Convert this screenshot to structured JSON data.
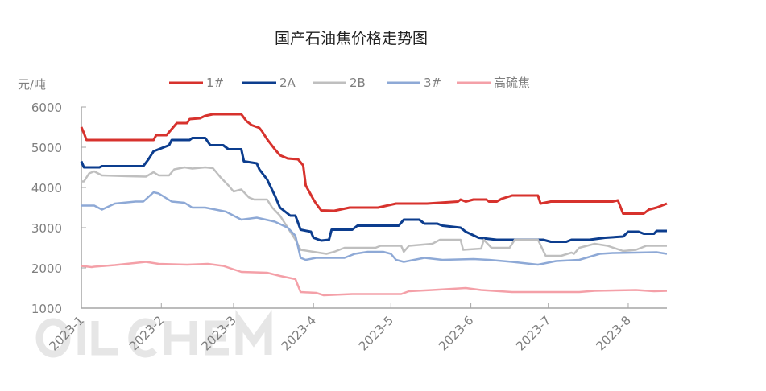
{
  "chart_data": {
    "type": "line",
    "title": "国产石油焦价格走势图",
    "ylabel": "元/吨",
    "xlabel": "",
    "ylim": [
      1000,
      6000
    ],
    "yticks": [
      "6000",
      "5000",
      "4000",
      "3000",
      "2000",
      "1000"
    ],
    "xlim": [
      "2023-01-01",
      "2023-08-16"
    ],
    "xticks": [
      {
        "label": "2023-1",
        "date": "2023-01-01"
      },
      {
        "label": "2023-2",
        "date": "2023-02-01"
      },
      {
        "label": "2023-3",
        "date": "2023-03-01"
      },
      {
        "label": "2023-4",
        "date": "2023-04-01"
      },
      {
        "label": "2023-5",
        "date": "2023-05-01"
      },
      {
        "label": "2023-6",
        "date": "2023-06-01"
      },
      {
        "label": "2023-7",
        "date": "2023-07-01"
      },
      {
        "label": "2023-8",
        "date": "2023-08-01"
      }
    ],
    "grid": false,
    "legend_position": "top",
    "watermark": "OILCHEM",
    "series": [
      {
        "name": "1#",
        "color": "#d7322d",
        "points": [
          [
            "2023-01-01",
            5500
          ],
          [
            "2023-01-02",
            5350
          ],
          [
            "2023-01-03",
            5180
          ],
          [
            "2023-01-29",
            5180
          ],
          [
            "2023-01-30",
            5300
          ],
          [
            "2023-02-03",
            5300
          ],
          [
            "2023-02-05",
            5450
          ],
          [
            "2023-02-07",
            5600
          ],
          [
            "2023-02-11",
            5600
          ],
          [
            "2023-02-12",
            5700
          ],
          [
            "2023-02-16",
            5720
          ],
          [
            "2023-02-18",
            5780
          ],
          [
            "2023-02-21",
            5820
          ],
          [
            "2023-03-04",
            5820
          ],
          [
            "2023-03-06",
            5650
          ],
          [
            "2023-03-08",
            5550
          ],
          [
            "2023-03-11",
            5480
          ],
          [
            "2023-03-12",
            5400
          ],
          [
            "2023-03-14",
            5200
          ],
          [
            "2023-03-17",
            4950
          ],
          [
            "2023-03-19",
            4800
          ],
          [
            "2023-03-22",
            4720
          ],
          [
            "2023-03-26",
            4700
          ],
          [
            "2023-03-28",
            4550
          ],
          [
            "2023-03-29",
            4050
          ],
          [
            "2023-04-01",
            3700
          ],
          [
            "2023-04-02",
            3600
          ],
          [
            "2023-04-04",
            3430
          ],
          [
            "2023-04-09",
            3420
          ],
          [
            "2023-04-15",
            3500
          ],
          [
            "2023-04-26",
            3500
          ],
          [
            "2023-05-03",
            3600
          ],
          [
            "2023-05-15",
            3600
          ],
          [
            "2023-05-27",
            3650
          ],
          [
            "2023-05-28",
            3700
          ],
          [
            "2023-05-30",
            3650
          ],
          [
            "2023-06-02",
            3700
          ],
          [
            "2023-06-07",
            3700
          ],
          [
            "2023-06-08",
            3650
          ],
          [
            "2023-06-11",
            3650
          ],
          [
            "2023-06-13",
            3720
          ],
          [
            "2023-06-17",
            3800
          ],
          [
            "2023-06-27",
            3800
          ],
          [
            "2023-06-28",
            3600
          ],
          [
            "2023-07-02",
            3650
          ],
          [
            "2023-07-26",
            3650
          ],
          [
            "2023-07-28",
            3680
          ],
          [
            "2023-07-30",
            3350
          ],
          [
            "2023-08-07",
            3350
          ],
          [
            "2023-08-09",
            3450
          ],
          [
            "2023-08-12",
            3500
          ],
          [
            "2023-08-16",
            3600
          ]
        ]
      },
      {
        "name": "2A",
        "color": "#0c3d8e",
        "points": [
          [
            "2023-01-01",
            4650
          ],
          [
            "2023-01-02",
            4500
          ],
          [
            "2023-01-08",
            4500
          ],
          [
            "2023-01-09",
            4530
          ],
          [
            "2023-01-25",
            4530
          ],
          [
            "2023-01-27",
            4700
          ],
          [
            "2023-01-29",
            4900
          ],
          [
            "2023-01-31",
            4950
          ],
          [
            "2023-02-04",
            5050
          ],
          [
            "2023-02-05",
            5180
          ],
          [
            "2023-02-12",
            5180
          ],
          [
            "2023-02-13",
            5230
          ],
          [
            "2023-02-18",
            5230
          ],
          [
            "2023-02-20",
            5050
          ],
          [
            "2023-02-25",
            5050
          ],
          [
            "2023-02-27",
            4950
          ],
          [
            "2023-03-04",
            4950
          ],
          [
            "2023-03-05",
            4650
          ],
          [
            "2023-03-10",
            4600
          ],
          [
            "2023-03-11",
            4450
          ],
          [
            "2023-03-14",
            4200
          ],
          [
            "2023-03-17",
            3800
          ],
          [
            "2023-03-19",
            3500
          ],
          [
            "2023-03-23",
            3300
          ],
          [
            "2023-03-25",
            3300
          ],
          [
            "2023-03-27",
            2950
          ],
          [
            "2023-03-31",
            2900
          ],
          [
            "2023-04-01",
            2750
          ],
          [
            "2023-04-04",
            2680
          ],
          [
            "2023-04-07",
            2700
          ],
          [
            "2023-04-08",
            2950
          ],
          [
            "2023-04-16",
            2950
          ],
          [
            "2023-04-18",
            3050
          ],
          [
            "2023-05-04",
            3050
          ],
          [
            "2023-05-06",
            3200
          ],
          [
            "2023-05-12",
            3200
          ],
          [
            "2023-05-14",
            3100
          ],
          [
            "2023-05-19",
            3100
          ],
          [
            "2023-05-21",
            3050
          ],
          [
            "2023-05-28",
            3000
          ],
          [
            "2023-05-30",
            2900
          ],
          [
            "2023-06-04",
            2750
          ],
          [
            "2023-06-11",
            2700
          ],
          [
            "2023-06-29",
            2700
          ],
          [
            "2023-07-02",
            2650
          ],
          [
            "2023-07-08",
            2650
          ],
          [
            "2023-07-10",
            2700
          ],
          [
            "2023-07-17",
            2700
          ],
          [
            "2023-07-23",
            2750
          ],
          [
            "2023-07-30",
            2780
          ],
          [
            "2023-08-01",
            2900
          ],
          [
            "2023-08-05",
            2900
          ],
          [
            "2023-08-07",
            2850
          ],
          [
            "2023-08-11",
            2850
          ],
          [
            "2023-08-12",
            2920
          ],
          [
            "2023-08-16",
            2920
          ]
        ]
      },
      {
        "name": "2B",
        "color": "#bfbfbf",
        "points": [
          [
            "2023-01-01",
            4150
          ],
          [
            "2023-01-02",
            4150
          ],
          [
            "2023-01-04",
            4350
          ],
          [
            "2023-01-06",
            4400
          ],
          [
            "2023-01-09",
            4300
          ],
          [
            "2023-01-19",
            4280
          ],
          [
            "2023-01-26",
            4270
          ],
          [
            "2023-01-29",
            4380
          ],
          [
            "2023-01-31",
            4300
          ],
          [
            "2023-02-04",
            4300
          ],
          [
            "2023-02-06",
            4450
          ],
          [
            "2023-02-10",
            4500
          ],
          [
            "2023-02-13",
            4470
          ],
          [
            "2023-02-18",
            4500
          ],
          [
            "2023-02-21",
            4480
          ],
          [
            "2023-02-24",
            4250
          ],
          [
            "2023-02-27",
            4050
          ],
          [
            "2023-03-01",
            3900
          ],
          [
            "2023-03-04",
            3950
          ],
          [
            "2023-03-07",
            3750
          ],
          [
            "2023-03-09",
            3700
          ],
          [
            "2023-03-14",
            3700
          ],
          [
            "2023-03-16",
            3500
          ],
          [
            "2023-03-19",
            3300
          ],
          [
            "2023-03-22",
            3000
          ],
          [
            "2023-03-25",
            2700
          ],
          [
            "2023-03-27",
            2450
          ],
          [
            "2023-04-01",
            2400
          ],
          [
            "2023-04-06",
            2350
          ],
          [
            "2023-04-09",
            2400
          ],
          [
            "2023-04-13",
            2500
          ],
          [
            "2023-04-25",
            2500
          ],
          [
            "2023-04-27",
            2550
          ],
          [
            "2023-05-05",
            2550
          ],
          [
            "2023-05-06",
            2400
          ],
          [
            "2023-05-08",
            2550
          ],
          [
            "2023-05-17",
            2600
          ],
          [
            "2023-05-20",
            2700
          ],
          [
            "2023-05-28",
            2700
          ],
          [
            "2023-05-29",
            2450
          ],
          [
            "2023-06-05",
            2480
          ],
          [
            "2023-06-06",
            2700
          ],
          [
            "2023-06-09",
            2500
          ],
          [
            "2023-06-16",
            2500
          ],
          [
            "2023-06-18",
            2700
          ],
          [
            "2023-06-27",
            2700
          ],
          [
            "2023-06-30",
            2300
          ],
          [
            "2023-07-06",
            2300
          ],
          [
            "2023-07-10",
            2380
          ],
          [
            "2023-07-11",
            2350
          ],
          [
            "2023-07-13",
            2500
          ],
          [
            "2023-07-19",
            2600
          ],
          [
            "2023-07-24",
            2550
          ],
          [
            "2023-07-30",
            2420
          ],
          [
            "2023-08-04",
            2450
          ],
          [
            "2023-08-08",
            2550
          ],
          [
            "2023-08-16",
            2550
          ]
        ]
      },
      {
        "name": "3#",
        "color": "#8ea9d6",
        "points": [
          [
            "2023-01-01",
            3550
          ],
          [
            "2023-01-06",
            3550
          ],
          [
            "2023-01-09",
            3450
          ],
          [
            "2023-01-14",
            3600
          ],
          [
            "2023-01-22",
            3650
          ],
          [
            "2023-01-25",
            3650
          ],
          [
            "2023-01-29",
            3880
          ],
          [
            "2023-01-31",
            3850
          ],
          [
            "2023-02-05",
            3650
          ],
          [
            "2023-02-10",
            3620
          ],
          [
            "2023-02-13",
            3500
          ],
          [
            "2023-02-18",
            3500
          ],
          [
            "2023-02-26",
            3400
          ],
          [
            "2023-03-04",
            3200
          ],
          [
            "2023-03-10",
            3250
          ],
          [
            "2023-03-17",
            3150
          ],
          [
            "2023-03-22",
            3000
          ],
          [
            "2023-03-25",
            2800
          ],
          [
            "2023-03-27",
            2250
          ],
          [
            "2023-03-29",
            2200
          ],
          [
            "2023-04-02",
            2250
          ],
          [
            "2023-04-13",
            2250
          ],
          [
            "2023-04-17",
            2350
          ],
          [
            "2023-04-22",
            2400
          ],
          [
            "2023-04-28",
            2400
          ],
          [
            "2023-05-01",
            2350
          ],
          [
            "2023-05-03",
            2200
          ],
          [
            "2023-05-06",
            2150
          ],
          [
            "2023-05-14",
            2250
          ],
          [
            "2023-05-21",
            2200
          ],
          [
            "2023-06-02",
            2220
          ],
          [
            "2023-06-08",
            2200
          ],
          [
            "2023-06-17",
            2150
          ],
          [
            "2023-06-27",
            2080
          ],
          [
            "2023-07-04",
            2170
          ],
          [
            "2023-07-13",
            2200
          ],
          [
            "2023-07-21",
            2350
          ],
          [
            "2023-07-26",
            2370
          ],
          [
            "2023-08-12",
            2390
          ],
          [
            "2023-08-16",
            2350
          ]
        ]
      },
      {
        "name": "高硫焦",
        "color": "#f4a0a8",
        "points": [
          [
            "2023-01-01",
            2050
          ],
          [
            "2023-01-05",
            2020
          ],
          [
            "2023-01-06",
            2030
          ],
          [
            "2023-01-14",
            2070
          ],
          [
            "2023-01-26",
            2150
          ],
          [
            "2023-01-31",
            2100
          ],
          [
            "2023-02-11",
            2080
          ],
          [
            "2023-02-19",
            2100
          ],
          [
            "2023-02-25",
            2050
          ],
          [
            "2023-03-04",
            1900
          ],
          [
            "2023-03-14",
            1880
          ],
          [
            "2023-03-19",
            1800
          ],
          [
            "2023-03-25",
            1720
          ],
          [
            "2023-03-27",
            1400
          ],
          [
            "2023-04-02",
            1380
          ],
          [
            "2023-04-05",
            1320
          ],
          [
            "2023-04-16",
            1350
          ],
          [
            "2023-05-05",
            1350
          ],
          [
            "2023-05-08",
            1420
          ],
          [
            "2023-05-17",
            1450
          ],
          [
            "2023-05-30",
            1500
          ],
          [
            "2023-06-05",
            1450
          ],
          [
            "2023-06-17",
            1400
          ],
          [
            "2023-07-13",
            1400
          ],
          [
            "2023-07-19",
            1430
          ],
          [
            "2023-08-04",
            1450
          ],
          [
            "2023-08-11",
            1420
          ],
          [
            "2023-08-16",
            1430
          ]
        ]
      }
    ]
  }
}
